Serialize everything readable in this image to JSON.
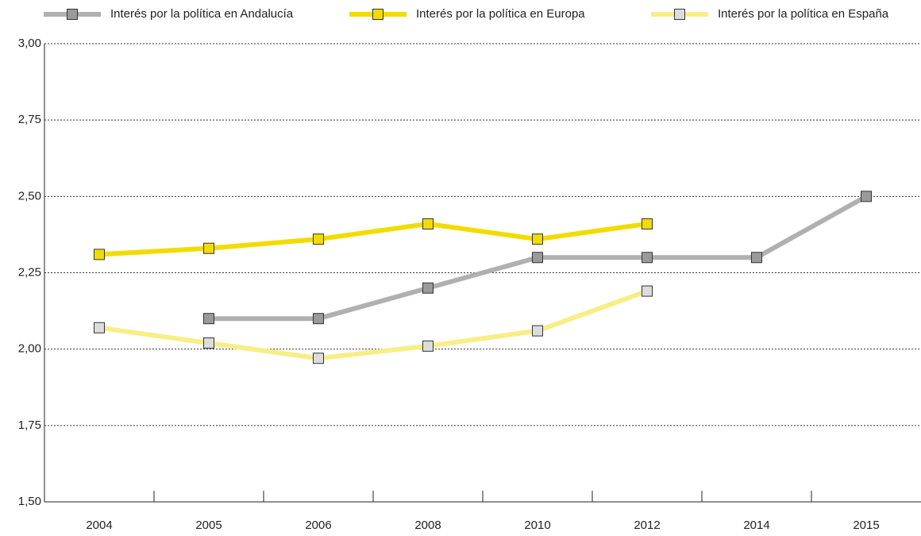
{
  "chart_data": {
    "type": "line",
    "categories": [
      "2004",
      "2005",
      "2006",
      "2008",
      "2010",
      "2012",
      "2014",
      "2015"
    ],
    "series": [
      {
        "name": "Interés por la política en Andalucía",
        "color": "#b0b0b0",
        "marker_color": "#9a9a9a",
        "values": [
          null,
          2.1,
          2.1,
          2.2,
          2.3,
          2.3,
          2.3,
          2.5
        ]
      },
      {
        "name": "Interés por la política en Europa",
        "color": "#f2dc00",
        "marker_color": "#f2dc00",
        "values": [
          2.31,
          2.33,
          2.36,
          2.41,
          2.36,
          2.41,
          null,
          null
        ]
      },
      {
        "name": "Interés por la política en España",
        "color": "#f7ee86",
        "marker_color": "#dcdcdc",
        "values": [
          2.07,
          2.02,
          1.97,
          2.01,
          2.06,
          2.19,
          null,
          null
        ]
      }
    ],
    "ylim": [
      1.5,
      3.0
    ],
    "yticks": [
      {
        "value": 1.5,
        "label": "1,50"
      },
      {
        "value": 1.75,
        "label": "1,75"
      },
      {
        "value": 2.0,
        "label": "2,00"
      },
      {
        "value": 2.25,
        "label": "2,25"
      },
      {
        "value": 2.5,
        "label": "2,50"
      },
      {
        "value": 2.75,
        "label": "2,75"
      },
      {
        "value": 3.0,
        "label": "3,00"
      }
    ],
    "grid": true,
    "legend": "top"
  }
}
